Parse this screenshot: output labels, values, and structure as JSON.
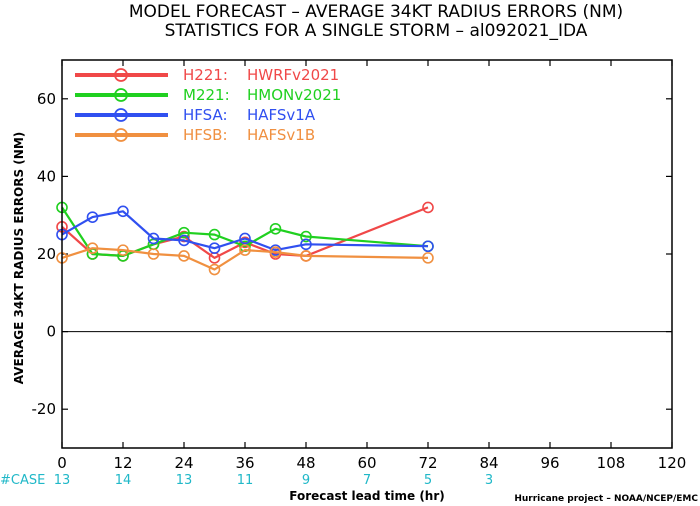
{
  "chart_data": {
    "type": "line",
    "title": "MODEL FORECAST – AVERAGE 34KT RADIUS ERRORS (NM)",
    "subtitle": "STATISTICS FOR A SINGLE STORM – al092021_IDA",
    "xlabel": "Forecast lead time (hr)",
    "ylabel": "AVERAGE 34KT RADIUS ERRORS (NM)",
    "xlim": [
      0,
      120
    ],
    "ylim": [
      -30,
      70
    ],
    "xticks": [
      0,
      12,
      24,
      36,
      48,
      60,
      72,
      84,
      96,
      108,
      120
    ],
    "yticks": [
      -20,
      0,
      20,
      40,
      60
    ],
    "grid": false,
    "legend_position": "top-left",
    "case_label": "#CASE",
    "case_counts": [
      {
        "x": 0,
        "label": "13"
      },
      {
        "x": 12,
        "label": "14"
      },
      {
        "x": 24,
        "label": "13"
      },
      {
        "x": 36,
        "label": "11"
      },
      {
        "x": 48,
        "label": "9"
      },
      {
        "x": 60,
        "label": "7"
      },
      {
        "x": 72,
        "label": "5"
      },
      {
        "x": 84,
        "label": "3"
      }
    ],
    "credit": "Hurricane project – NOAA/NCEP/EMC",
    "series": [
      {
        "id": "H221",
        "name": "H221:",
        "label": "HWRFv2021",
        "color": "#f04848",
        "x": [
          0,
          6,
          12,
          18,
          24,
          30,
          36,
          42,
          48,
          72
        ],
        "y": [
          27,
          20,
          19.5,
          22.5,
          24.5,
          19,
          23,
          20,
          19.5,
          32
        ]
      },
      {
        "id": "M221",
        "name": "M221:",
        "label": "HMONv2021",
        "color": "#20d020",
        "x": [
          0,
          6,
          12,
          18,
          24,
          30,
          36,
          42,
          48,
          72
        ],
        "y": [
          32,
          20,
          19.5,
          22.5,
          25.5,
          25,
          22,
          26.5,
          24.5,
          22
        ]
      },
      {
        "id": "HFSA",
        "name": "HFSA:",
        "label": "HAFSv1A",
        "color": "#3050f0",
        "x": [
          0,
          6,
          12,
          18,
          24,
          30,
          36,
          42,
          48,
          72
        ],
        "y": [
          25,
          29.5,
          31,
          24,
          23.5,
          21.5,
          24,
          21,
          22.5,
          22
        ]
      },
      {
        "id": "HFSB",
        "name": "HFSB:",
        "label": "HAFSv1B",
        "color": "#f09040",
        "x": [
          0,
          6,
          12,
          18,
          24,
          30,
          36,
          42,
          48,
          72
        ],
        "y": [
          19,
          21.5,
          21,
          20,
          19.5,
          16,
          21,
          20.5,
          19.5,
          19
        ]
      }
    ]
  }
}
